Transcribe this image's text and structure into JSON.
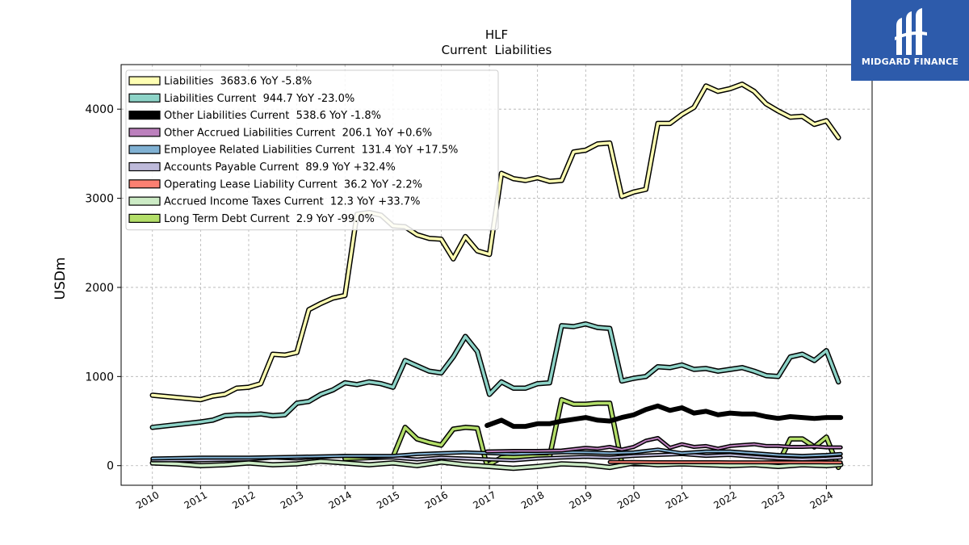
{
  "logo": {
    "text": "MIDGARD FINANCE"
  },
  "chart_data": {
    "type": "line",
    "title": "HLF",
    "subtitle": "Current  Liabilities",
    "ylabel": "USDm",
    "xlabel": "",
    "xlim": [
      2009.35,
      2024.95
    ],
    "ylim": [
      -220,
      4500
    ],
    "xticks": [
      "2010",
      "2011",
      "2012",
      "2013",
      "2014",
      "2015",
      "2016",
      "2017",
      "2018",
      "2019",
      "2020",
      "2021",
      "2022",
      "2023",
      "2024"
    ],
    "yticks": [
      "0",
      "1000",
      "2000",
      "3000",
      "4000"
    ],
    "grid": true,
    "legend_position": "upper-left",
    "series": [
      {
        "name": "Liabilities  3683.6 YoY -5.8%",
        "color": "#ffffb3",
        "width": 3.5,
        "x": [
          2010.0,
          2011.0,
          2011.25,
          2011.5,
          2011.75,
          2012.0,
          2012.25,
          2012.5,
          2012.75,
          2013.0,
          2013.25,
          2013.5,
          2013.75,
          2014.0,
          2014.25,
          2014.5,
          2014.75,
          2015.0,
          2015.25,
          2015.5,
          2015.75,
          2016.0,
          2016.25,
          2016.5,
          2016.75,
          2017.0,
          2017.25,
          2017.5,
          2017.75,
          2018.0,
          2018.25,
          2018.5,
          2018.75,
          2019.0,
          2019.25,
          2019.5,
          2019.75,
          2020.0,
          2020.25,
          2020.5,
          2020.75,
          2021.0,
          2021.25,
          2021.5,
          2021.75,
          2022.0,
          2022.25,
          2022.5,
          2022.75,
          2023.0,
          2023.25,
          2023.5,
          2023.75,
          2024.0,
          2024.25
        ],
        "y": [
          790,
          740,
          780,
          800,
          870,
          880,
          920,
          1250,
          1240,
          1270,
          1750,
          1820,
          1880,
          1910,
          2820,
          2840,
          2810,
          2690,
          2680,
          2590,
          2550,
          2540,
          2320,
          2570,
          2410,
          2370,
          3280,
          3220,
          3200,
          3230,
          3190,
          3200,
          3520,
          3540,
          3610,
          3620,
          3020,
          3070,
          3100,
          3840,
          3840,
          3940,
          4020,
          4260,
          4200,
          4230,
          4280,
          4200,
          4060,
          3980,
          3910,
          3920,
          3830,
          3870,
          3680
        ]
      },
      {
        "name": "Liabilities Current  944.7 YoY -23.0%",
        "color": "#8dd3c7",
        "width": 3.5,
        "x": [
          2010.0,
          2011.0,
          2011.25,
          2011.5,
          2011.75,
          2012.0,
          2012.25,
          2012.5,
          2012.75,
          2013.0,
          2013.25,
          2013.5,
          2013.75,
          2014.0,
          2014.25,
          2014.5,
          2014.75,
          2015.0,
          2015.25,
          2015.5,
          2015.75,
          2016.0,
          2016.25,
          2016.5,
          2016.75,
          2017.0,
          2017.25,
          2017.5,
          2017.75,
          2018.0,
          2018.25,
          2018.5,
          2018.75,
          2019.0,
          2019.25,
          2019.5,
          2019.75,
          2020.0,
          2020.25,
          2020.5,
          2020.75,
          2021.0,
          2021.25,
          2021.5,
          2021.75,
          2022.0,
          2022.25,
          2022.5,
          2022.75,
          2023.0,
          2023.25,
          2023.5,
          2023.75,
          2024.0,
          2024.25
        ],
        "y": [
          430,
          490,
          510,
          560,
          570,
          570,
          580,
          560,
          570,
          700,
          720,
          800,
          850,
          930,
          910,
          940,
          920,
          880,
          1180,
          1120,
          1060,
          1040,
          1220,
          1450,
          1280,
          800,
          940,
          870,
          870,
          920,
          930,
          1570,
          1560,
          1590,
          1550,
          1540,
          950,
          980,
          1000,
          1110,
          1100,
          1130,
          1080,
          1090,
          1060,
          1080,
          1100,
          1060,
          1010,
          1000,
          1220,
          1250,
          1180,
          1290,
          940
        ]
      },
      {
        "name": "Other Liabilities Current  538.6 YoY -1.8%",
        "color": "#000000",
        "width": 6,
        "x": [
          2016.95,
          2017.25,
          2017.5,
          2017.75,
          2018.0,
          2018.25,
          2018.5,
          2018.75,
          2019.0,
          2019.25,
          2019.5,
          2019.75,
          2020.0,
          2020.25,
          2020.5,
          2020.75,
          2021.0,
          2021.25,
          2021.5,
          2021.75,
          2022.0,
          2022.25,
          2022.5,
          2022.75,
          2023.0,
          2023.25,
          2023.5,
          2023.75,
          2024.0,
          2024.3
        ],
        "y": [
          450,
          510,
          440,
          440,
          470,
          470,
          500,
          520,
          540,
          510,
          500,
          540,
          570,
          630,
          670,
          620,
          650,
          590,
          610,
          570,
          590,
          580,
          580,
          550,
          530,
          550,
          540,
          530,
          540,
          540
        ]
      },
      {
        "name": "Other Accrued Liabilities Current  206.1 YoY +0.6%",
        "color": "#bc80bd",
        "width": 2,
        "x": [
          2016.95,
          2017.5,
          2018.0,
          2018.5,
          2019.0,
          2019.25,
          2019.5,
          2019.75,
          2020.0,
          2020.25,
          2020.5,
          2020.75,
          2021.0,
          2021.25,
          2021.5,
          2021.75,
          2022.0,
          2022.25,
          2022.5,
          2022.75,
          2023.0,
          2023.25,
          2023.5,
          2023.75,
          2024.0,
          2024.3
        ],
        "y": [
          160,
          165,
          165,
          170,
          200,
          190,
          210,
          180,
          210,
          280,
          310,
          200,
          240,
          210,
          220,
          190,
          220,
          230,
          240,
          220,
          220,
          210,
          210,
          215,
          205,
          205
        ]
      },
      {
        "name": "Employee Related Liabilities Current  131.4 YoY +17.5%",
        "color": "#80b1d3",
        "width": 2,
        "x": [
          2010.0,
          2011.0,
          2012.0,
          2013.0,
          2014.0,
          2015.0,
          2015.5,
          2016.0,
          2016.5,
          2017.0,
          2017.5,
          2018.0,
          2018.5,
          2019.0,
          2019.5,
          2020.0,
          2020.5,
          2021.0,
          2021.5,
          2022.0,
          2022.5,
          2023.0,
          2023.5,
          2024.0,
          2024.3
        ],
        "y": [
          80,
          90,
          90,
          100,
          110,
          110,
          130,
          140,
          150,
          140,
          130,
          140,
          150,
          150,
          140,
          150,
          180,
          140,
          160,
          160,
          140,
          120,
          110,
          120,
          131
        ]
      },
      {
        "name": "Accounts Payable Current  89.9 YoY +32.4%",
        "color": "#bebada",
        "width": 2,
        "x": [
          2010.0,
          2011.0,
          2012.0,
          2012.5,
          2013.0,
          2013.5,
          2014.0,
          2014.5,
          2015.0,
          2015.5,
          2016.0,
          2016.5,
          2017.0,
          2017.5,
          2018.0,
          2018.5,
          2019.0,
          2019.5,
          2020.0,
          2020.5,
          2021.0,
          2021.5,
          2022.0,
          2022.5,
          2023.0,
          2023.5,
          2024.0,
          2024.3
        ],
        "y": [
          60,
          60,
          70,
          90,
          80,
          100,
          110,
          100,
          90,
          70,
          90,
          80,
          70,
          60,
          80,
          90,
          100,
          90,
          110,
          120,
          130,
          110,
          120,
          100,
          80,
          70,
          80,
          90
        ]
      },
      {
        "name": "Operating Lease Liability Current  36.2 YoY -2.2%",
        "color": "#fb8072",
        "width": 2,
        "x": [
          2019.5,
          2020.0,
          2020.5,
          2021.0,
          2021.5,
          2022.0,
          2022.5,
          2023.0,
          2023.5,
          2024.0,
          2024.3
        ],
        "y": [
          40,
          40,
          38,
          38,
          38,
          37,
          37,
          37,
          37,
          36,
          36
        ]
      },
      {
        "name": "Accrued Income Taxes Current  12.3 YoY +33.7%",
        "color": "#ccebc5",
        "width": 3.5,
        "x": [
          2010.0,
          2010.5,
          2011.0,
          2011.5,
          2012.0,
          2012.5,
          2013.0,
          2013.5,
          2014.0,
          2014.5,
          2015.0,
          2015.5,
          2016.0,
          2016.5,
          2017.0,
          2017.5,
          2018.0,
          2018.5,
          2019.0,
          2019.5,
          2020.0,
          2020.5,
          2021.0,
          2021.5,
          2022.0,
          2022.5,
          2023.0,
          2023.5,
          2024.0,
          2024.3
        ],
        "y": [
          30,
          20,
          0,
          10,
          30,
          10,
          20,
          50,
          30,
          10,
          30,
          0,
          40,
          10,
          -10,
          -30,
          -10,
          20,
          10,
          -20,
          30,
          10,
          20,
          10,
          0,
          10,
          -10,
          10,
          0,
          12
        ]
      },
      {
        "name": "Long Term Debt Current  2.9 YoY -99.0%",
        "color": "#b3de69",
        "width": 3.5,
        "x": [
          2014.0,
          2015.0,
          2015.25,
          2015.5,
          2015.75,
          2016.0,
          2016.25,
          2016.5,
          2016.75,
          2016.95,
          2017.25,
          2017.5,
          2017.75,
          2018.0,
          2018.25,
          2018.5,
          2018.75,
          2019.0,
          2019.25,
          2019.5,
          2019.75,
          2020.0,
          2020.5,
          2021.0,
          2021.5,
          2022.0,
          2022.5,
          2023.0,
          2023.25,
          2023.5,
          2023.75,
          2024.0,
          2024.25
        ],
        "y": [
          80,
          100,
          430,
          300,
          260,
          230,
          410,
          430,
          420,
          0,
          90,
          100,
          100,
          100,
          100,
          740,
          690,
          690,
          700,
          700,
          30,
          20,
          20,
          20,
          20,
          20,
          20,
          20,
          300,
          300,
          210,
          320,
          -20
        ]
      }
    ]
  }
}
